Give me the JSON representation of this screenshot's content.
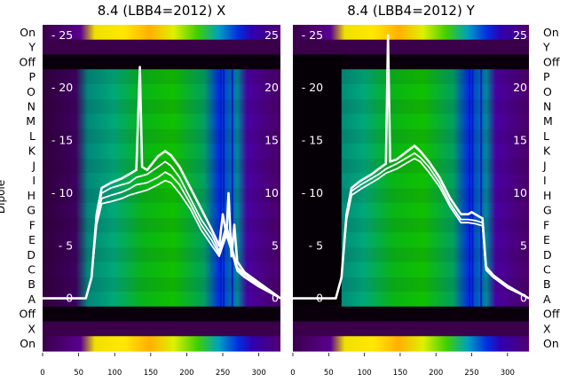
{
  "chart_data": [
    {
      "type": "heatmap",
      "title": "8.4 (LBB4=2012) X",
      "ylabel": "Dipole",
      "row_labels": [
        "On",
        "Y",
        "Off",
        "P",
        "O",
        "N",
        "M",
        "L",
        "K",
        "J",
        "I",
        "H",
        "G",
        "F",
        "E",
        "D",
        "C",
        "B",
        "A",
        "Off",
        "X",
        "On"
      ],
      "xlim": [
        0,
        330
      ],
      "x_ticks": [
        0,
        50,
        100,
        150,
        200,
        250,
        300
      ],
      "overlay_ylim": [
        -5,
        26
      ],
      "overlay_ticks": [
        0,
        5,
        10,
        15,
        20,
        25
      ],
      "overlay_series": [
        {
          "x": [
            0,
            60,
            68,
            75,
            82,
            95,
            110,
            120,
            130,
            135,
            138,
            145,
            160,
            170,
            178,
            190,
            205,
            220,
            235,
            245,
            250,
            255,
            258,
            262,
            266,
            270,
            280,
            300,
            330
          ],
          "y": [
            0,
            0,
            2,
            8,
            10.5,
            11,
            11.4,
            11.8,
            12.2,
            22,
            12.5,
            12.2,
            13.5,
            14,
            13.6,
            12.5,
            10.5,
            8.5,
            6.5,
            5,
            8,
            6,
            10,
            4,
            7,
            3.5,
            2.5,
            1.5,
            0
          ]
        },
        {
          "x": [
            0,
            60,
            68,
            75,
            82,
            95,
            110,
            120,
            130,
            145,
            160,
            170,
            178,
            190,
            205,
            220,
            235,
            245,
            255,
            262,
            270,
            280,
            300,
            330
          ],
          "y": [
            0,
            0,
            2,
            8,
            10,
            10.5,
            10.8,
            11,
            11.5,
            11.8,
            12.5,
            13,
            12.6,
            11.5,
            9.5,
            7.5,
            6,
            4.5,
            7,
            5,
            3,
            2.3,
            1.3,
            0
          ]
        },
        {
          "x": [
            0,
            60,
            68,
            75,
            82,
            95,
            110,
            120,
            130,
            145,
            160,
            170,
            178,
            190,
            205,
            220,
            235,
            245,
            255,
            262,
            270,
            280,
            300,
            330
          ],
          "y": [
            0,
            0,
            2,
            7.5,
            9.5,
            9.8,
            10.1,
            10.4,
            10.8,
            11,
            11.5,
            12,
            11.7,
            10.8,
            9,
            7,
            5.5,
            4.2,
            6.5,
            4.7,
            2.8,
            2.1,
            1.2,
            0
          ]
        },
        {
          "x": [
            0,
            60,
            68,
            75,
            82,
            95,
            110,
            120,
            130,
            145,
            160,
            170,
            178,
            190,
            205,
            220,
            235,
            245,
            255,
            262,
            270,
            280,
            300,
            330
          ],
          "y": [
            0,
            0,
            2,
            7,
            9,
            9.2,
            9.5,
            9.8,
            10,
            10.3,
            10.8,
            11.2,
            11,
            10,
            8.5,
            6.5,
            5,
            4,
            6,
            4.5,
            2.6,
            2,
            1.1,
            0
          ]
        }
      ]
    },
    {
      "type": "heatmap",
      "title": "8.4 (LBB4=2012) Y",
      "ylabel": "",
      "row_labels": [
        "On",
        "Y",
        "Off",
        "P",
        "O",
        "N",
        "M",
        "L",
        "K",
        "J",
        "I",
        "H",
        "G",
        "F",
        "E",
        "D",
        "C",
        "B",
        "A",
        "Off",
        "X",
        "On"
      ],
      "xlim": [
        0,
        330
      ],
      "x_ticks": [
        0,
        50,
        100,
        150,
        200,
        250,
        300
      ],
      "overlay_ylim": [
        -5,
        26
      ],
      "overlay_ticks": [
        0,
        5,
        10,
        15,
        20,
        25
      ],
      "overlay_series": [
        {
          "x": [
            0,
            60,
            68,
            75,
            82,
            95,
            110,
            120,
            130,
            133,
            136,
            145,
            160,
            170,
            178,
            190,
            205,
            220,
            235,
            245,
            250,
            255,
            260,
            265,
            270,
            280,
            300,
            330
          ],
          "y": [
            0,
            0,
            2,
            8,
            10.5,
            11.2,
            11.8,
            12.3,
            12.8,
            25,
            13,
            13.2,
            14,
            14.5,
            14,
            13,
            11.5,
            9.5,
            8,
            8,
            8.2,
            8,
            7.8,
            7.6,
            3,
            2.2,
            1.2,
            0
          ]
        },
        {
          "x": [
            0,
            60,
            68,
            75,
            82,
            95,
            110,
            120,
            130,
            145,
            160,
            170,
            178,
            190,
            205,
            220,
            235,
            245,
            255,
            265,
            270,
            280,
            300,
            330
          ],
          "y": [
            0,
            0,
            2,
            7.8,
            10.2,
            10.8,
            11.4,
            11.8,
            12.3,
            12.8,
            13.4,
            13.8,
            13.4,
            12.5,
            11,
            9,
            7.5,
            7.5,
            7.4,
            7.2,
            2.8,
            2.1,
            1.1,
            0
          ]
        },
        {
          "x": [
            0,
            60,
            68,
            75,
            82,
            95,
            110,
            120,
            130,
            145,
            160,
            170,
            178,
            190,
            205,
            220,
            235,
            245,
            255,
            265,
            270,
            280,
            300,
            330
          ],
          "y": [
            0,
            0,
            2,
            7.5,
            9.8,
            10.4,
            11,
            11.4,
            11.9,
            12.3,
            12.9,
            13.3,
            13,
            12,
            10.6,
            8.7,
            7.2,
            7.2,
            7.1,
            6.9,
            2.7,
            2,
            1,
            0
          ]
        }
      ]
    }
  ]
}
